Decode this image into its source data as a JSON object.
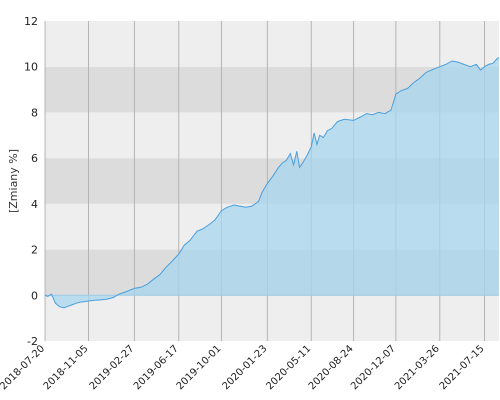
{
  "chart_data": {
    "type": "area",
    "ylabel": "[Zmiany %]",
    "xlabel": "",
    "title": "",
    "ylim": [
      -2,
      12
    ],
    "y_ticks": [
      -2,
      0,
      2,
      4,
      6,
      8,
      10,
      12
    ],
    "x_range": [
      "2018-07-20",
      "2021-08-20"
    ],
    "x_ticks": [
      "2018-07-20",
      "2018-11-05",
      "2019-02-27",
      "2019-06-17",
      "2019-10-01",
      "2020-01-23",
      "2020-05-11",
      "2020-08-24",
      "2020-12-07",
      "2021-03-26",
      "2021-07-15"
    ],
    "grid": true,
    "colors": {
      "line": "#4a9fdc",
      "fill": "#a7d6ee",
      "band_light": "#eeeeee",
      "band_dark": "#dcdcdc",
      "gridline": "#b4b4b4",
      "zero_line": "#9ec9e6"
    },
    "series": [
      {
        "points": [
          [
            "2018-07-20",
            0.0
          ],
          [
            "2018-07-27",
            -0.05
          ],
          [
            "2018-08-05",
            0.05
          ],
          [
            "2018-08-15",
            -0.35
          ],
          [
            "2018-08-25",
            -0.5
          ],
          [
            "2018-09-05",
            -0.55
          ],
          [
            "2018-09-15",
            -0.48
          ],
          [
            "2018-09-25",
            -0.42
          ],
          [
            "2018-10-05",
            -0.35
          ],
          [
            "2018-10-15",
            -0.3
          ],
          [
            "2018-10-25",
            -0.28
          ],
          [
            "2018-11-05",
            -0.25
          ],
          [
            "2018-11-20",
            -0.22
          ],
          [
            "2018-12-05",
            -0.2
          ],
          [
            "2018-12-20",
            -0.17
          ],
          [
            "2019-01-05",
            -0.1
          ],
          [
            "2019-01-20",
            0.05
          ],
          [
            "2019-02-05",
            0.15
          ],
          [
            "2019-02-27",
            0.3
          ],
          [
            "2019-03-15",
            0.35
          ],
          [
            "2019-04-01",
            0.5
          ],
          [
            "2019-04-15",
            0.7
          ],
          [
            "2019-05-01",
            0.9
          ],
          [
            "2019-05-15",
            1.2
          ],
          [
            "2019-06-01",
            1.5
          ],
          [
            "2019-06-17",
            1.8
          ],
          [
            "2019-07-01",
            2.2
          ],
          [
            "2019-07-15",
            2.4
          ],
          [
            "2019-08-01",
            2.8
          ],
          [
            "2019-08-15",
            2.9
          ],
          [
            "2019-09-01",
            3.1
          ],
          [
            "2019-09-15",
            3.3
          ],
          [
            "2019-10-01",
            3.7
          ],
          [
            "2019-10-15",
            3.85
          ],
          [
            "2019-11-01",
            3.95
          ],
          [
            "2019-11-15",
            3.9
          ],
          [
            "2019-12-01",
            3.85
          ],
          [
            "2019-12-15",
            3.9
          ],
          [
            "2020-01-01",
            4.1
          ],
          [
            "2020-01-10",
            4.5
          ],
          [
            "2020-01-23",
            4.9
          ],
          [
            "2020-02-05",
            5.2
          ],
          [
            "2020-02-20",
            5.6
          ],
          [
            "2020-03-01",
            5.8
          ],
          [
            "2020-03-10",
            5.9
          ],
          [
            "2020-03-20",
            6.2
          ],
          [
            "2020-03-28",
            5.7
          ],
          [
            "2020-04-05",
            6.3
          ],
          [
            "2020-04-12",
            5.6
          ],
          [
            "2020-04-20",
            5.8
          ],
          [
            "2020-04-30",
            6.1
          ],
          [
            "2020-05-11",
            6.5
          ],
          [
            "2020-05-18",
            7.1
          ],
          [
            "2020-05-25",
            6.6
          ],
          [
            "2020-06-01",
            7.0
          ],
          [
            "2020-06-10",
            6.9
          ],
          [
            "2020-06-20",
            7.2
          ],
          [
            "2020-07-01",
            7.3
          ],
          [
            "2020-07-15",
            7.6
          ],
          [
            "2020-08-01",
            7.7
          ],
          [
            "2020-08-24",
            7.65
          ],
          [
            "2020-09-10",
            7.8
          ],
          [
            "2020-09-25",
            7.95
          ],
          [
            "2020-10-10",
            7.9
          ],
          [
            "2020-10-25",
            8.0
          ],
          [
            "2020-11-10",
            7.95
          ],
          [
            "2020-11-25",
            8.1
          ],
          [
            "2020-12-07",
            8.8
          ],
          [
            "2020-12-20",
            8.95
          ],
          [
            "2021-01-05",
            9.05
          ],
          [
            "2021-01-20",
            9.3
          ],
          [
            "2021-02-05",
            9.5
          ],
          [
            "2021-02-20",
            9.75
          ],
          [
            "2021-03-05",
            9.85
          ],
          [
            "2021-03-26",
            10.0
          ],
          [
            "2021-04-10",
            10.1
          ],
          [
            "2021-04-25",
            10.25
          ],
          [
            "2021-05-10",
            10.2
          ],
          [
            "2021-05-25",
            10.1
          ],
          [
            "2021-06-10",
            10.0
          ],
          [
            "2021-06-25",
            10.1
          ],
          [
            "2021-07-05",
            9.85
          ],
          [
            "2021-07-15",
            10.0
          ],
          [
            "2021-07-25",
            10.1
          ],
          [
            "2021-08-05",
            10.15
          ],
          [
            "2021-08-15",
            10.35
          ],
          [
            "2021-08-20",
            10.4
          ]
        ]
      }
    ]
  }
}
